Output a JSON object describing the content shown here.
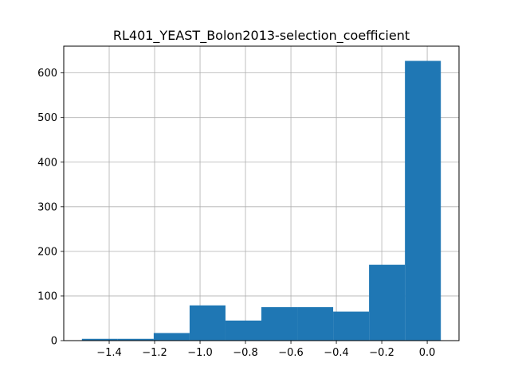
{
  "chart_data": {
    "type": "bar",
    "title": "RL401_YEAST_Bolon2013-selection_coefficient",
    "xlabel": "",
    "ylabel": "",
    "bin_edges": [
      -1.52,
      -1.362,
      -1.204,
      -1.046,
      -0.888,
      -0.73,
      -0.572,
      -0.414,
      -0.256,
      -0.098,
      0.06
    ],
    "values": [
      4,
      4,
      17,
      79,
      45,
      75,
      75,
      65,
      170,
      627
    ],
    "xlim": [
      -1.6,
      0.14
    ],
    "ylim": [
      0,
      660
    ],
    "xticks": [
      -1.4,
      -1.2,
      -1.0,
      -0.8,
      -0.6,
      -0.4,
      -0.2,
      0.0
    ],
    "xtick_labels": [
      "−1.4",
      "−1.2",
      "−1.0",
      "−0.8",
      "−0.6",
      "−0.4",
      "−0.2",
      "0.0"
    ],
    "yticks": [
      0,
      100,
      200,
      300,
      400,
      500,
      600
    ],
    "ytick_labels": [
      "0",
      "100",
      "200",
      "300",
      "400",
      "500",
      "600"
    ],
    "grid": true,
    "bar_color": "#1f77b4"
  }
}
